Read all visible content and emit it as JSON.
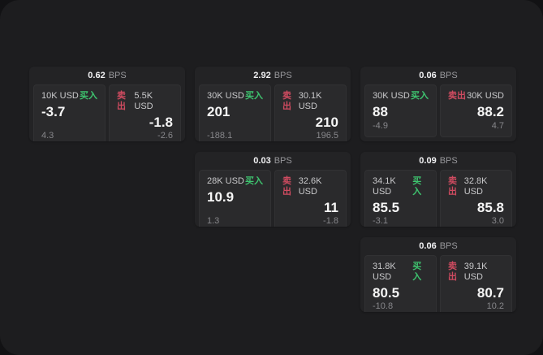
{
  "colors": {
    "page_bg": "#121214",
    "panel_bg": "#1d1d1f",
    "card_bg": "#232325",
    "tile_bg": "#2a2a2c",
    "buy_green": "#3ec46f",
    "sell_red": "#cf4b60",
    "value_white": "#f6f6f6",
    "label_gray": "#c9c9cb",
    "muted_gray": "#87878b"
  },
  "labels": {
    "bps_unit": "BPS",
    "buy": "买入",
    "sell": "卖出"
  },
  "cards": [
    {
      "bps": "0.62",
      "grid": {
        "row": 1,
        "col": 1
      },
      "buy": {
        "amount": "10K USD",
        "value": "-3.7",
        "sub": "4.3"
      },
      "sell": {
        "amount": "5.5K USD",
        "value": "-1.8",
        "sub": "-2.6"
      }
    },
    {
      "bps": "2.92",
      "grid": {
        "row": 1,
        "col": 2
      },
      "buy": {
        "amount": "30K USD",
        "value": "201",
        "sub": "-188.1"
      },
      "sell": {
        "amount": "30.1K USD",
        "value": "210",
        "sub": "196.5"
      }
    },
    {
      "bps": "0.06",
      "grid": {
        "row": 1,
        "col": 3
      },
      "buy": {
        "amount": "30K USD",
        "value": "88",
        "sub": "-4.9"
      },
      "sell": {
        "amount": "30K USD",
        "value": "88.2",
        "sub": "4.7"
      }
    },
    {
      "bps": "0.03",
      "grid": {
        "row": 2,
        "col": 2
      },
      "buy": {
        "amount": "28K USD",
        "value": "10.9",
        "sub": "1.3"
      },
      "sell": {
        "amount": "32.6K USD",
        "value": "11",
        "sub": "-1.8"
      }
    },
    {
      "bps": "0.09",
      "grid": {
        "row": 2,
        "col": 3
      },
      "buy": {
        "amount": "34.1K USD",
        "value": "85.5",
        "sub": "-3.1"
      },
      "sell": {
        "amount": "32.8K USD",
        "value": "85.8",
        "sub": "3.0"
      }
    },
    {
      "bps": "0.06",
      "grid": {
        "row": 3,
        "col": 3
      },
      "buy": {
        "amount": "31.8K USD",
        "value": "80.5",
        "sub": "-10.8"
      },
      "sell": {
        "amount": "39.1K USD",
        "value": "80.7",
        "sub": "10.2"
      }
    }
  ]
}
